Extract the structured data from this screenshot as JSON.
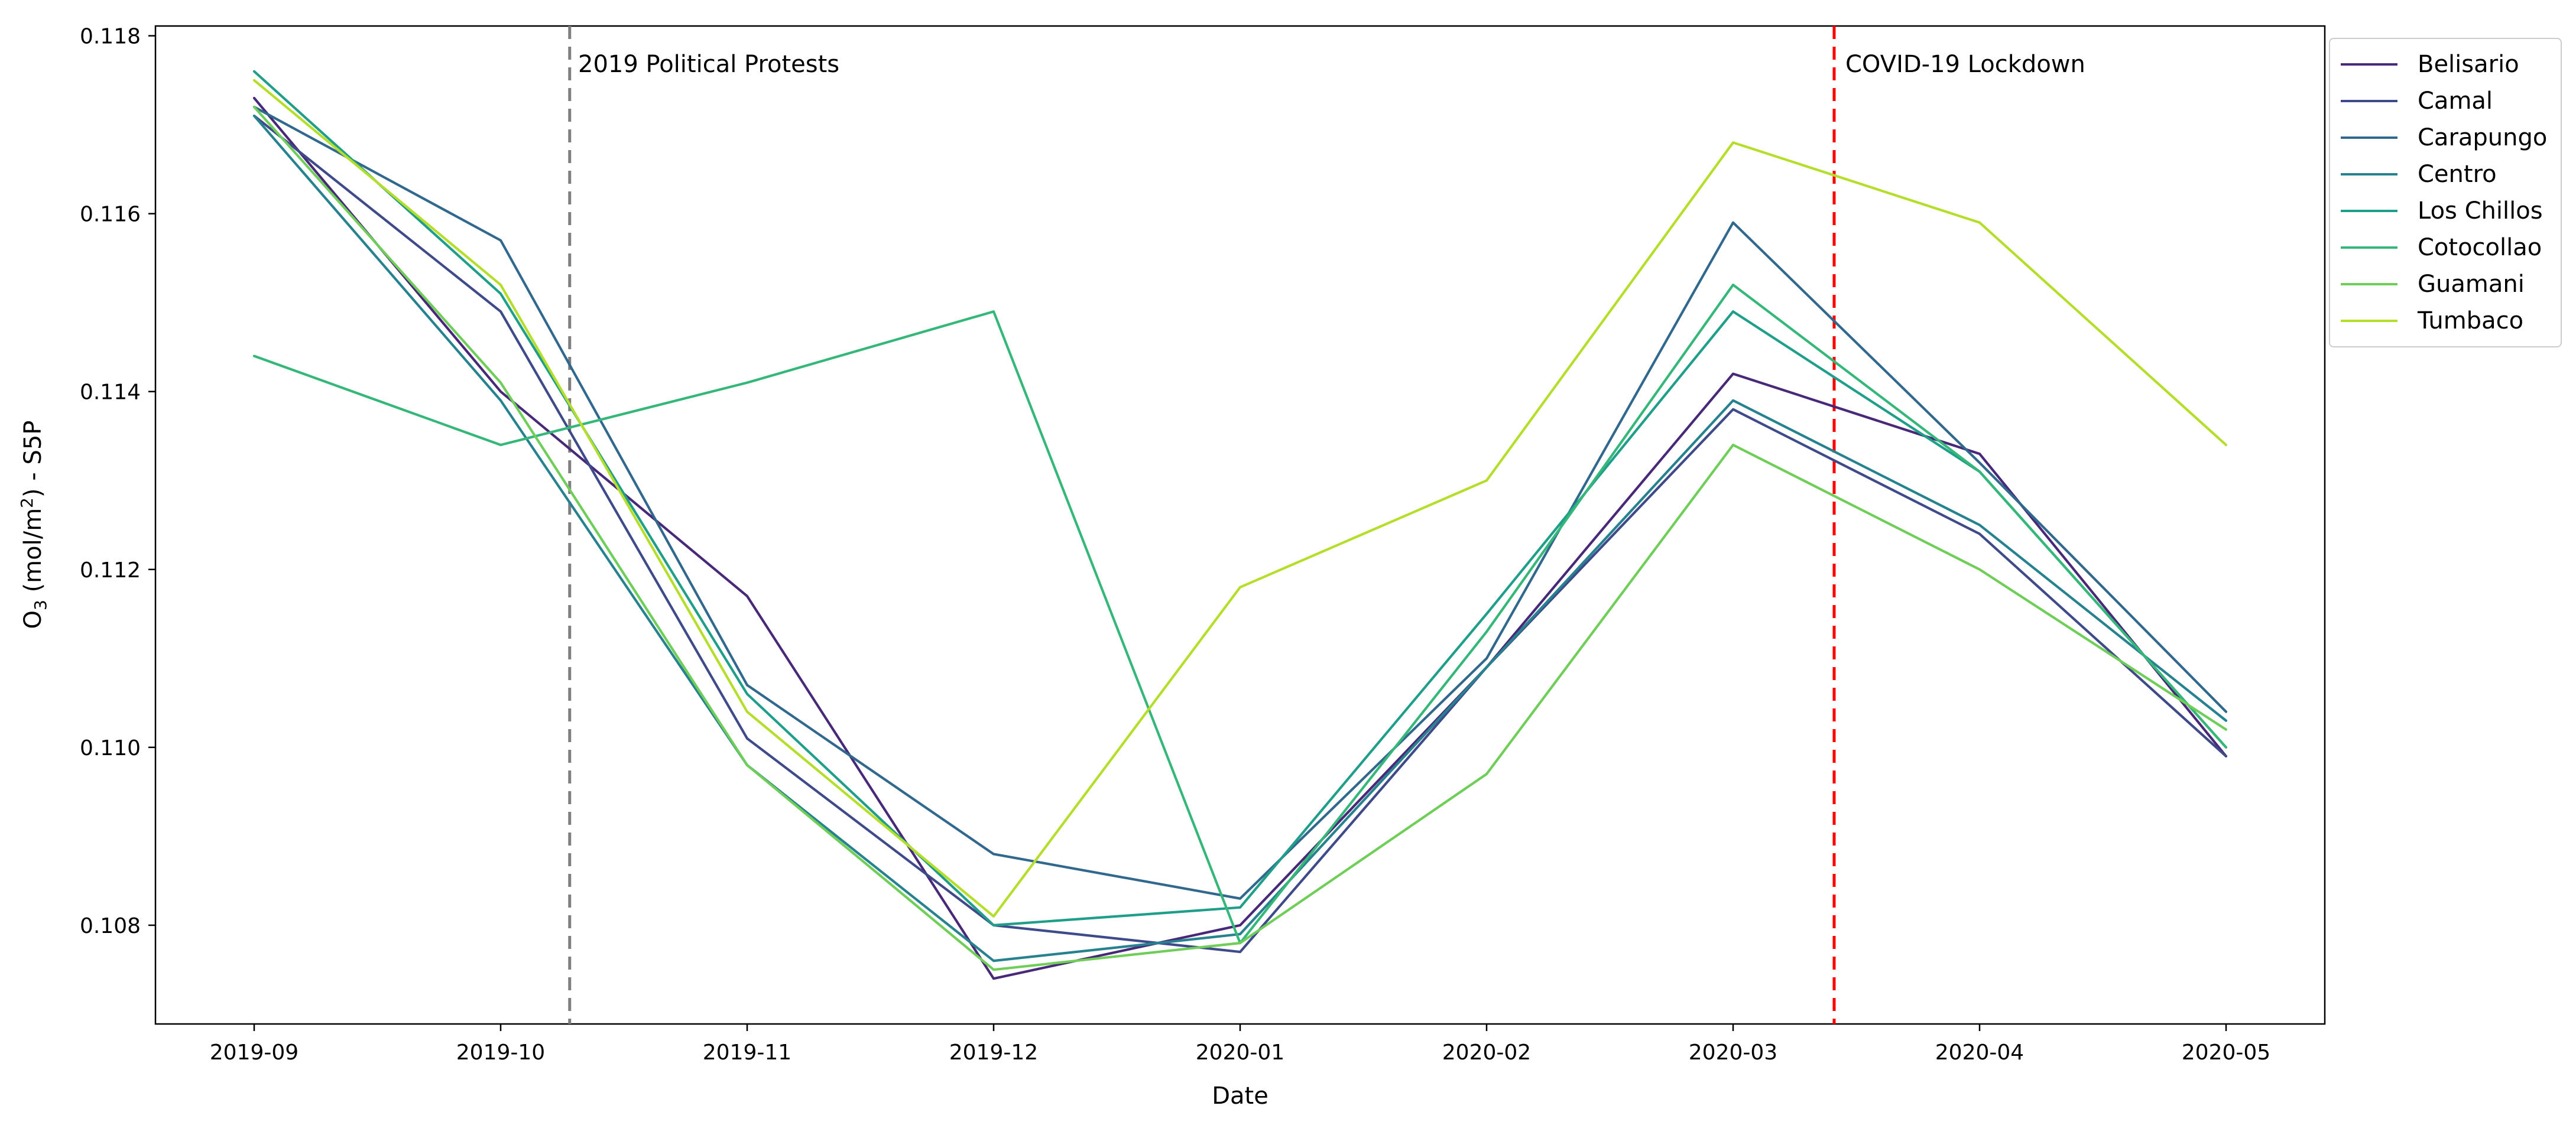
{
  "chart_data": {
    "type": "line",
    "title": "",
    "xlabel": "Date",
    "ylabel": "O3 (mol/m2) - S5P",
    "ylabel_parts": {
      "o": "O",
      "sub": "3",
      "mid": " (mol/m",
      "sup": "2",
      "tail": ") - S5P"
    },
    "categories": [
      "2019-09",
      "2019-10",
      "2019-11",
      "2019-12",
      "2020-01",
      "2020-02",
      "2020-03",
      "2020-04",
      "2020-05"
    ],
    "ylim": [
      0.10689,
      0.11811
    ],
    "yticks": [
      0.108,
      0.11,
      0.112,
      0.114,
      0.116,
      0.118
    ],
    "ytick_labels": [
      "0.108",
      "0.110",
      "0.112",
      "0.114",
      "0.116",
      "0.118"
    ],
    "grid": false,
    "legend_position": "outside-upper-right",
    "series": [
      {
        "name": "Belisario",
        "color": "#482878",
        "values": [
          0.1173,
          0.114,
          0.1117,
          0.1074,
          0.108,
          0.1109,
          0.1142,
          0.1133,
          0.1099
        ]
      },
      {
        "name": "Camal",
        "color": "#3e4a89",
        "values": [
          0.1171,
          0.1149,
          0.1101,
          0.108,
          0.1077,
          0.1109,
          0.1138,
          0.1124,
          0.1099
        ]
      },
      {
        "name": "Carapungo",
        "color": "#31688e",
        "values": [
          0.1172,
          0.1157,
          0.1107,
          0.1088,
          0.1083,
          0.111,
          0.1159,
          0.1132,
          0.1104
        ]
      },
      {
        "name": "Centro",
        "color": "#26828e",
        "values": [
          0.1171,
          0.1139,
          0.1098,
          0.1076,
          0.1079,
          0.1109,
          0.1139,
          0.1125,
          0.1103
        ]
      },
      {
        "name": "Los Chillos",
        "color": "#1f9e89",
        "values": [
          0.1176,
          0.1151,
          0.1106,
          0.108,
          0.1082,
          0.1115,
          0.1149,
          0.1131,
          0.11
        ]
      },
      {
        "name": "Cotocollao",
        "color": "#35b779",
        "values": [
          0.1144,
          0.1134,
          0.1141,
          0.1149,
          0.1078,
          0.1113,
          0.1152,
          0.1131,
          0.11
        ]
      },
      {
        "name": "Guamani",
        "color": "#6ece58",
        "values": [
          0.1172,
          0.1141,
          0.1098,
          0.1075,
          0.1078,
          0.1097,
          0.1134,
          0.112,
          0.1102
        ]
      },
      {
        "name": "Tumbaco",
        "color": "#b5de2b",
        "values": [
          0.1175,
          0.1152,
          0.1104,
          0.1081,
          0.1118,
          0.113,
          0.1168,
          0.1159,
          0.1134
        ]
      }
    ],
    "annotations": [
      {
        "label": "2019 Political Protests",
        "x": 1.28,
        "color": "#7f7f7f",
        "style": "dashed"
      },
      {
        "label": "COVID-19 Lockdown",
        "x": 6.41,
        "color": "#ff0000",
        "style": "dashed"
      }
    ],
    "axis_color": "#000000",
    "legend_border_color": "#cccccc",
    "background_color": "#ffffff"
  }
}
